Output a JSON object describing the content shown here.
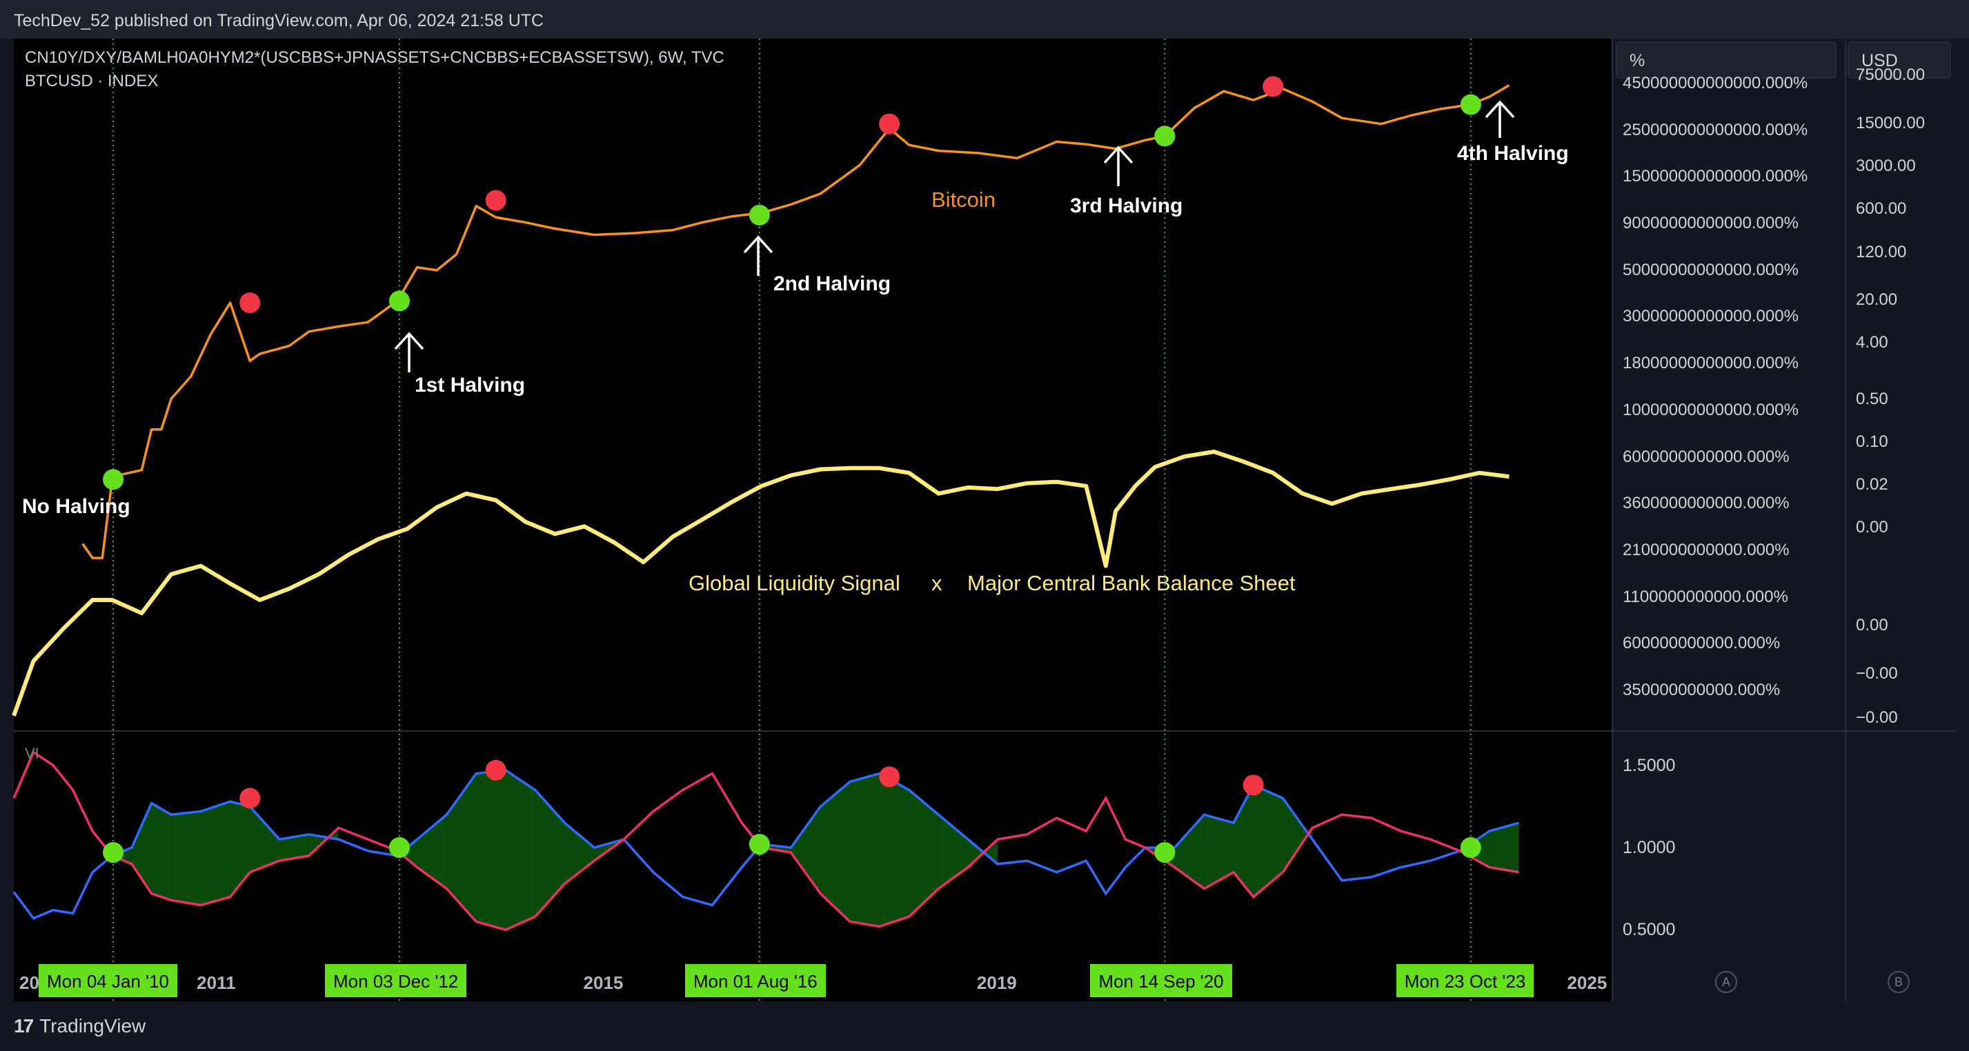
{
  "header": {
    "published": "TechDev_52 published on TradingView.com, Apr 06, 2024 21:58 UTC"
  },
  "footer": {
    "brand": "TradingView",
    "brand_mark": "17"
  },
  "symbols": {
    "main": "CN10Y/DXY/BAMLH0A0HYM2*(USCBBS+JPNASSETS+CNCBBS+ECBASSETSW), 6W, TVC",
    "overlay": "BTCUSD · INDEX"
  },
  "units": {
    "left": "%",
    "right": "USD"
  },
  "indicator": {
    "name": "VI"
  },
  "series_labels": {
    "bitcoin": "Bitcoin",
    "liquidity": "Global Liquidity Signal",
    "cross": "x",
    "balance": "Major Central Bank Balance Sheet"
  },
  "annotations": {
    "no_halving": "No Halving",
    "h1": "1st Halving",
    "h2": "2nd Halving",
    "h3": "3rd Halving",
    "h4": "4th Halving"
  },
  "buttons": {
    "a": "A",
    "b": "B"
  },
  "colors": {
    "bitcoin": "#f7931a",
    "liquidity": "#ffeb7a",
    "vi_plus": "#2f6bff",
    "vi_minus": "#ee2f6b",
    "fill": "#0a4b0a",
    "buy_dot": "#64e01d",
    "sell_dot": "#f23645",
    "badge": "#64e01d"
  },
  "chart_data": [
    {
      "type": "line",
      "title": "",
      "pane": "main",
      "x_ticks": [
        "2009",
        "2011",
        "2015",
        "2019",
        "2025"
      ],
      "time_range": [
        2009.0,
        2025.2
      ],
      "pct_axis_ticks": [
        "450000000000000.000%",
        "250000000000000.000%",
        "150000000000000.000%",
        "90000000000000.000%",
        "50000000000000.000%",
        "30000000000000.000%",
        "18000000000000.000%",
        "10000000000000.000%",
        "6000000000000.000%",
        "3600000000000.000%",
        "2100000000000.000%",
        "1100000000000.000%",
        "600000000000.000%",
        "350000000000.000%"
      ],
      "usd_axis_ticks": [
        "75000.00",
        "15000.00",
        "3000.00",
        "600.00",
        "120.00",
        "20.00",
        "4.00",
        "0.50",
        "0.10",
        "0.02",
        "0.00",
        "0.00",
        "−0.00",
        "−0.00"
      ],
      "series": [
        {
          "name": "Bitcoin",
          "axis": "USD (log)",
          "x": [
            2009.7,
            2009.8,
            2009.9,
            2010.0,
            2010.1,
            2010.3,
            2010.4,
            2010.5,
            2010.6,
            2010.8,
            2011.0,
            2011.2,
            2011.4,
            2011.5,
            2011.8,
            2012.0,
            2012.3,
            2012.6,
            2012.9,
            2013.1,
            2013.3,
            2013.5,
            2013.7,
            2013.9,
            2014.2,
            2014.5,
            2014.9,
            2015.3,
            2015.7,
            2016.0,
            2016.3,
            2016.6,
            2016.9,
            2017.2,
            2017.6,
            2017.9,
            2018.1,
            2018.4,
            2018.8,
            2019.2,
            2019.6,
            2019.9,
            2020.2,
            2020.5,
            2020.7,
            2021.0,
            2021.3,
            2021.6,
            2021.9,
            2022.2,
            2022.5,
            2022.9,
            2023.2,
            2023.5,
            2023.8,
            2024.0,
            2024.2
          ],
          "y": [
            0.005,
            0.003,
            0.003,
            0.05,
            0.06,
            0.07,
            0.3,
            0.3,
            0.9,
            2.0,
            9,
            28,
            3.5,
            4.5,
            6,
            10,
            12,
            14,
            30,
            100,
            90,
            160,
            900,
            600,
            500,
            400,
            320,
            340,
            380,
            500,
            620,
            700,
            950,
            1400,
            3900,
            14500,
            8000,
            6500,
            6000,
            5000,
            9000,
            8200,
            7000,
            9500,
            11000,
            30000,
            55000,
            40000,
            60000,
            38000,
            21000,
            17000,
            23000,
            29000,
            34000,
            45000,
            68000
          ]
        },
        {
          "name": "Global Liquidity Signal x Major Central Bank Balance Sheet",
          "axis": "% (log)",
          "x": [
            2009.0,
            2009.2,
            2009.5,
            2009.8,
            2010.0,
            2010.3,
            2010.6,
            2010.9,
            2011.2,
            2011.5,
            2011.8,
            2012.1,
            2012.4,
            2012.7,
            2013.0,
            2013.3,
            2013.6,
            2013.9,
            2014.2,
            2014.5,
            2014.8,
            2015.1,
            2015.4,
            2015.7,
            2016.0,
            2016.3,
            2016.6,
            2016.9,
            2017.2,
            2017.5,
            2017.8,
            2018.1,
            2018.4,
            2018.7,
            2019.0,
            2019.3,
            2019.6,
            2019.9,
            2020.1,
            2020.2,
            2020.4,
            2020.6,
            2020.9,
            2021.2,
            2021.5,
            2021.8,
            2022.1,
            2022.4,
            2022.7,
            2023.0,
            2023.3,
            2023.6,
            2023.9,
            2024.2
          ],
          "y": [
            300000000000,
            600000000000,
            900000000000,
            1300000000000,
            1300000000000,
            1100000000000,
            1800000000000,
            2000000000000,
            1600000000000,
            1300000000000,
            1500000000000,
            1800000000000,
            2300000000000,
            2800000000000,
            3200000000000,
            4200000000000,
            5000000000000,
            4600000000000,
            3500000000000,
            3000000000000,
            3300000000000,
            2700000000000,
            2100000000000,
            2900000000000,
            3600000000000,
            4500000000000,
            5500000000000,
            6300000000000,
            6800000000000,
            6900000000000,
            6900000000000,
            6500000000000,
            5000000000000,
            5400000000000,
            5300000000000,
            5700000000000,
            5800000000000,
            5500000000000,
            2000000000000,
            4000000000000,
            5500000000000,
            7000000000000,
            8000000000000,
            8500000000000,
            7500000000000,
            6500000000000,
            5000000000000,
            4400000000000,
            5000000000000,
            5300000000000,
            5600000000000,
            6000000000000,
            6500000000000,
            6200000000000
          ]
        }
      ],
      "markers": {
        "halving_lines_x": [
          2010.01,
          2012.92,
          2016.58,
          2020.7,
          2023.81
        ],
        "buy_dots": [
          {
            "x": 2010.01,
            "y": 0.05
          },
          {
            "x": 2012.92,
            "y": 30
          },
          {
            "x": 2016.58,
            "y": 650
          },
          {
            "x": 2020.7,
            "y": 11000
          },
          {
            "x": 2023.81,
            "y": 34000
          }
        ],
        "sell_dots": [
          {
            "x": 2011.4,
            "y": 28
          },
          {
            "x": 2013.9,
            "y": 1100
          },
          {
            "x": 2017.9,
            "y": 17000
          },
          {
            "x": 2021.8,
            "y": 65000
          }
        ]
      }
    },
    {
      "type": "line",
      "title": "VI",
      "pane": "indicator",
      "ylim": [
        0.3,
        1.7
      ],
      "y_ticks": [
        1.5,
        1.0,
        0.5
      ],
      "y_tick_labels": [
        "1.5000",
        "1.0000",
        "0.5000"
      ],
      "date_badges": [
        "Mon 04 Jan '10",
        "Mon 03 Dec '12",
        "Mon 01 Aug '16",
        "Mon 14 Sep '20",
        "Mon 23 Oct '23"
      ],
      "series": [
        {
          "name": "VI+",
          "x": [
            2009.0,
            2009.2,
            2009.4,
            2009.6,
            2009.8,
            2010.0,
            2010.2,
            2010.4,
            2010.6,
            2010.9,
            2011.2,
            2011.4,
            2011.7,
            2012.0,
            2012.3,
            2012.6,
            2012.9,
            2013.1,
            2013.4,
            2013.7,
            2014.0,
            2014.3,
            2014.6,
            2014.9,
            2015.2,
            2015.5,
            2015.8,
            2016.1,
            2016.4,
            2016.6,
            2016.9,
            2017.2,
            2017.5,
            2017.8,
            2018.1,
            2018.4,
            2018.7,
            2019.0,
            2019.3,
            2019.6,
            2019.9,
            2020.1,
            2020.3,
            2020.5,
            2020.8,
            2021.1,
            2021.4,
            2021.6,
            2021.9,
            2022.2,
            2022.5,
            2022.8,
            2023.1,
            2023.4,
            2023.7,
            2024.0,
            2024.3
          ],
          "y": [
            0.73,
            0.57,
            0.62,
            0.6,
            0.85,
            0.95,
            1.0,
            1.27,
            1.2,
            1.22,
            1.28,
            1.25,
            1.05,
            1.08,
            1.05,
            0.98,
            0.95,
            1.05,
            1.2,
            1.45,
            1.47,
            1.35,
            1.15,
            1.0,
            1.05,
            0.85,
            0.7,
            0.65,
            0.88,
            1.02,
            1.0,
            1.25,
            1.4,
            1.45,
            1.35,
            1.2,
            1.05,
            0.9,
            0.92,
            0.85,
            0.92,
            0.72,
            0.88,
            1.0,
            1.0,
            1.2,
            1.15,
            1.38,
            1.3,
            1.05,
            0.8,
            0.82,
            0.88,
            0.92,
            0.98,
            1.1,
            1.15
          ]
        },
        {
          "name": "VI-",
          "x": [
            2009.0,
            2009.2,
            2009.4,
            2009.6,
            2009.8,
            2010.0,
            2010.2,
            2010.4,
            2010.6,
            2010.9,
            2011.2,
            2011.4,
            2011.7,
            2012.0,
            2012.3,
            2012.6,
            2012.9,
            2013.1,
            2013.4,
            2013.7,
            2014.0,
            2014.3,
            2014.6,
            2014.9,
            2015.2,
            2015.5,
            2015.8,
            2016.1,
            2016.4,
            2016.6,
            2016.9,
            2017.2,
            2017.5,
            2017.8,
            2018.1,
            2018.4,
            2018.7,
            2019.0,
            2019.3,
            2019.6,
            2019.9,
            2020.1,
            2020.3,
            2020.5,
            2020.8,
            2021.1,
            2021.4,
            2021.6,
            2021.9,
            2022.2,
            2022.5,
            2022.8,
            2023.1,
            2023.4,
            2023.7,
            2024.0,
            2024.3
          ],
          "y": [
            1.3,
            1.58,
            1.5,
            1.35,
            1.1,
            0.95,
            0.9,
            0.72,
            0.68,
            0.65,
            0.7,
            0.85,
            0.92,
            0.95,
            1.12,
            1.05,
            0.98,
            0.88,
            0.75,
            0.55,
            0.5,
            0.58,
            0.78,
            0.92,
            1.05,
            1.22,
            1.35,
            1.45,
            1.15,
            1.0,
            0.97,
            0.72,
            0.55,
            0.52,
            0.58,
            0.75,
            0.88,
            1.05,
            1.08,
            1.18,
            1.1,
            1.3,
            1.05,
            1.0,
            0.88,
            0.75,
            0.85,
            0.7,
            0.85,
            1.12,
            1.2,
            1.18,
            1.1,
            1.05,
            0.98,
            0.88,
            0.85
          ]
        }
      ],
      "markers": {
        "buy_dots": [
          {
            "x": 2010.01,
            "y": 0.97
          },
          {
            "x": 2012.92,
            "y": 1.0
          },
          {
            "x": 2016.58,
            "y": 1.02
          },
          {
            "x": 2020.7,
            "y": 0.97
          },
          {
            "x": 2023.81,
            "y": 1.0
          }
        ],
        "sell_dots": [
          {
            "x": 2011.4,
            "y": 1.3
          },
          {
            "x": 2013.9,
            "y": 1.47
          },
          {
            "x": 2017.9,
            "y": 1.43
          },
          {
            "x": 2021.6,
            "y": 1.38
          }
        ]
      }
    }
  ]
}
